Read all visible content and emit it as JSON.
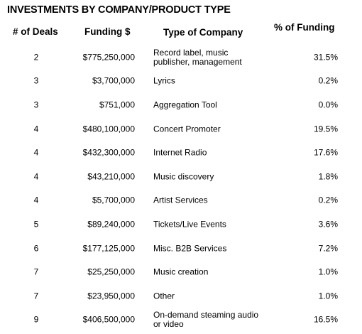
{
  "title": "INVESTMENTS BY COMPANY/PRODUCT TYPE",
  "headers": {
    "deals": "# of Deals",
    "funding": "Funding $",
    "type": "Type of Company",
    "pct": "% of Funding"
  },
  "rows": [
    {
      "deals": "2",
      "funding": "$775,250,000",
      "type": "Record label, music publisher, management",
      "pct": "31.5%"
    },
    {
      "deals": "3",
      "funding": "$3,700,000",
      "type": "Lyrics",
      "pct": "0.2%"
    },
    {
      "deals": "3",
      "funding": "$751,000",
      "type": "Aggregation Tool",
      "pct": "0.0%"
    },
    {
      "deals": "4",
      "funding": "$480,100,000",
      "type": "Concert Promoter",
      "pct": "19.5%"
    },
    {
      "deals": "4",
      "funding": "$432,300,000",
      "type": "Internet Radio",
      "pct": "17.6%"
    },
    {
      "deals": "4",
      "funding": "$43,210,000",
      "type": "Music discovery",
      "pct": "1.8%"
    },
    {
      "deals": "4",
      "funding": "$5,700,000",
      "type": "Artist Services",
      "pct": "0.2%"
    },
    {
      "deals": "5",
      "funding": "$89,240,000",
      "type": "Tickets/Live Events",
      "pct": "3.6%"
    },
    {
      "deals": "6",
      "funding": "$177,125,000",
      "type": "Misc. B2B Services",
      "pct": "7.2%"
    },
    {
      "deals": "7",
      "funding": "$25,250,000",
      "type": "Music creation",
      "pct": "1.0%"
    },
    {
      "deals": "7",
      "funding": "$23,950,000",
      "type": "Other",
      "pct": "1.0%"
    },
    {
      "deals": "9",
      "funding": "$406,500,000",
      "type": "On-demand steaming audio or video",
      "pct": "16.5%"
    }
  ]
}
